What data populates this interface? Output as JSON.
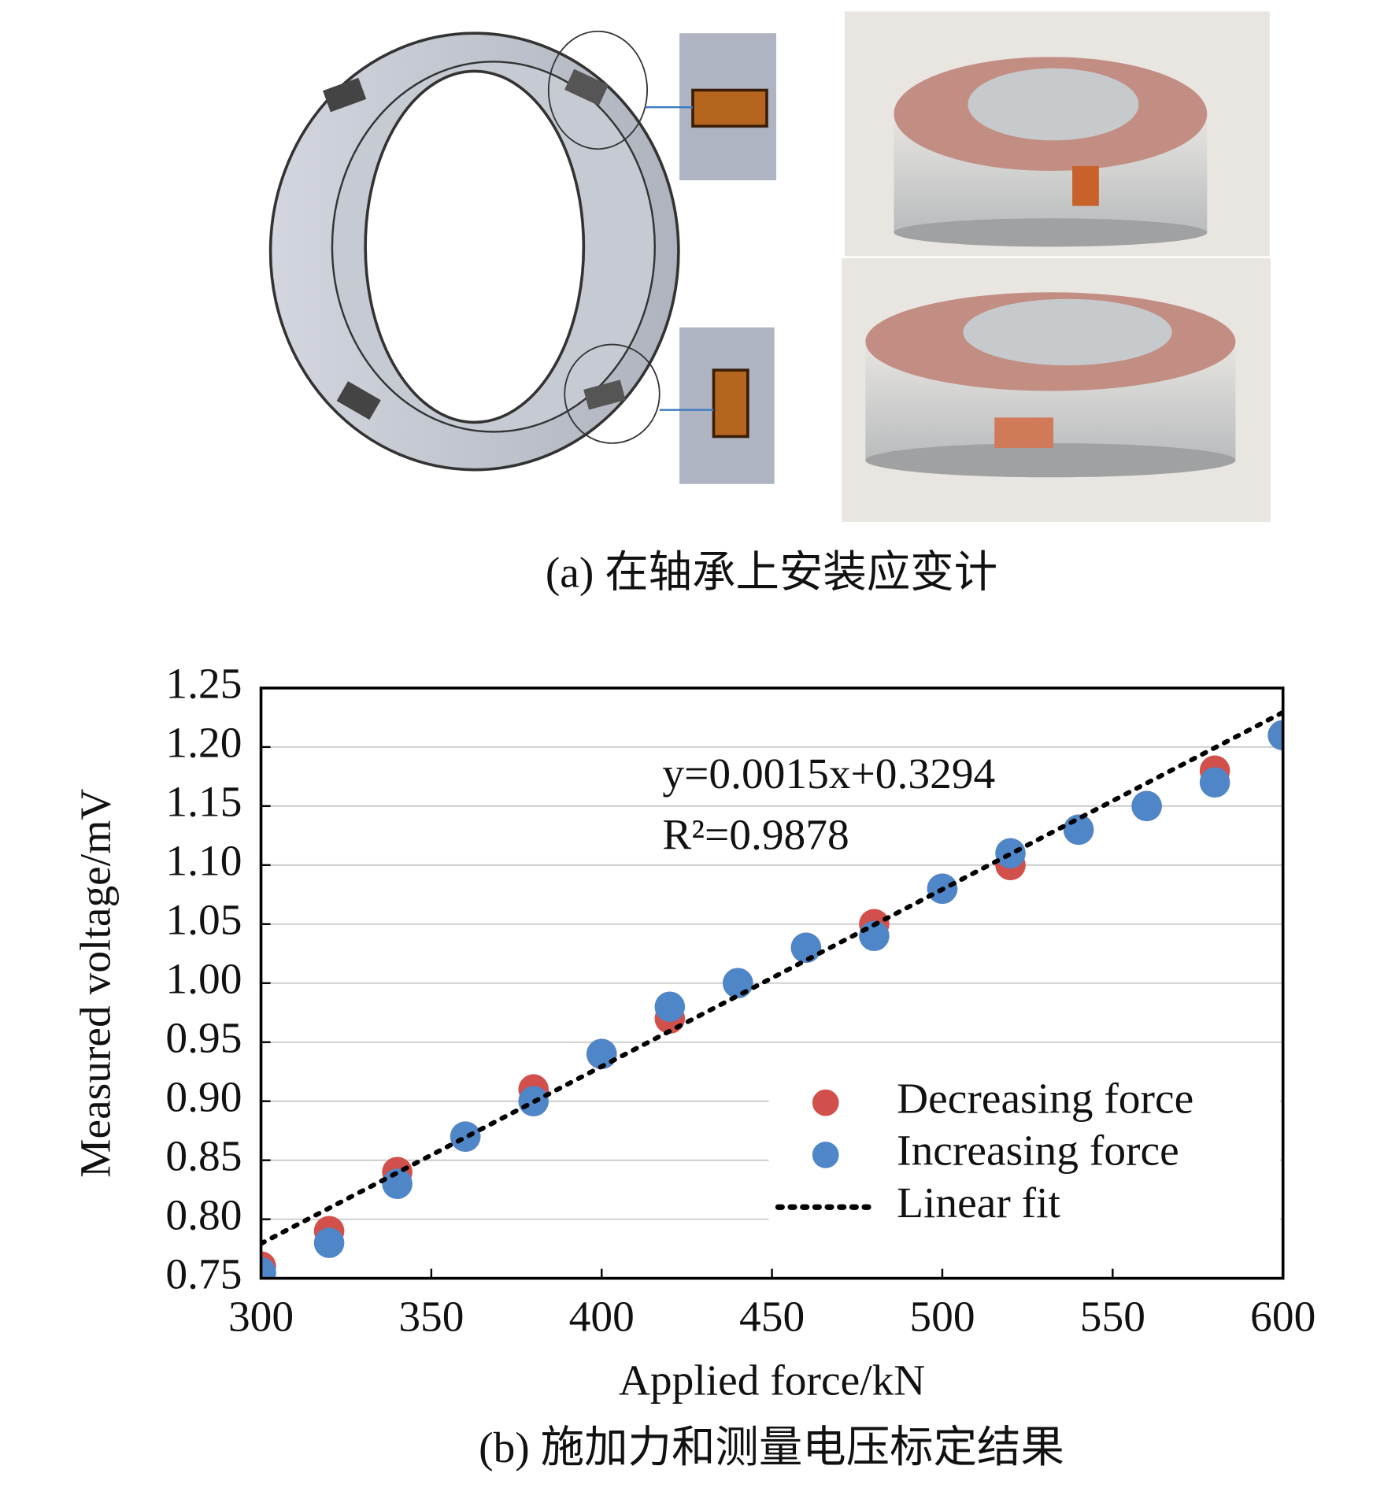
{
  "caption_a": "(a) 在轴承上安装应变计",
  "caption_b": "(b) 施加力和测量电压标定结果",
  "chart_data": {
    "type": "scatter",
    "xlabel": "Applied force/kN",
    "ylabel": "Measured voltage/mV",
    "xlim": [
      300,
      600
    ],
    "xticks": [
      300,
      350,
      400,
      450,
      500,
      550,
      600
    ],
    "ylim": [
      0.75,
      1.25
    ],
    "yticks": [
      0.75,
      {
        "value": 0.8,
        "label": "0.80"
      },
      0.85,
      {
        "value": 0.9,
        "label": "0.90"
      },
      0.95,
      {
        "value": 1.0,
        "label": "1.00"
      },
      1.05,
      {
        "value": 1.1,
        "label": "1.10"
      },
      1.15,
      {
        "value": 1.2,
        "label": "1.20"
      },
      1.25
    ],
    "grid": true,
    "legend": "lower right",
    "annotations": [
      "y=0.0015x+0.3294",
      "R²=0.9878"
    ],
    "series": [
      {
        "name": "Decreasing force",
        "color": "#d2504b",
        "x": [
          300,
          320,
          340,
          360,
          380,
          400,
          420,
          440,
          460,
          480,
          500,
          520,
          540,
          560,
          580,
          600
        ],
        "values": [
          0.76,
          0.79,
          0.84,
          0.87,
          0.91,
          0.94,
          0.97,
          1.0,
          1.03,
          1.05,
          1.08,
          1.1,
          1.13,
          1.15,
          1.18,
          1.21
        ]
      },
      {
        "name": "Increasing force",
        "color": "#4f86c8",
        "x": [
          300,
          320,
          340,
          360,
          380,
          400,
          420,
          440,
          460,
          480,
          500,
          520,
          540,
          560,
          580,
          600
        ],
        "values": [
          0.755,
          0.78,
          0.83,
          0.87,
          0.9,
          0.94,
          0.98,
          1.0,
          1.03,
          1.04,
          1.08,
          1.11,
          1.13,
          1.15,
          1.17,
          1.21
        ]
      },
      {
        "name": "Linear fit",
        "type": "line",
        "color": "#000000",
        "style": "dotted",
        "x": [
          300,
          600
        ],
        "values": [
          0.7794,
          1.2294
        ]
      }
    ]
  }
}
